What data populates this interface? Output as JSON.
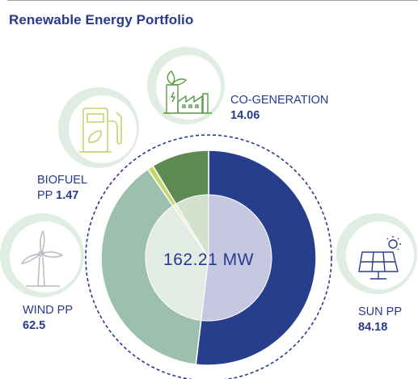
{
  "title": "Renewable Energy Portfolio",
  "center_label": "162.21 MW",
  "colors": {
    "title": "#283a8c",
    "sun": "#273e8c",
    "wind": "#9dbfad",
    "biofuel": "#c5d66a",
    "cogeneration": "#5d8a52",
    "icon_circle": "#dcebe0",
    "icon_stroke": "#5a9a45"
  },
  "chart_data": {
    "type": "pie",
    "title": "Renewable Energy Portfolio",
    "total_label": "162.21 MW",
    "unit": "MW",
    "slices": [
      {
        "key": "sun",
        "name": "SUN PP",
        "value": 84.18,
        "value_label": "84.18",
        "color": "#273e8c",
        "inner_color": "#c6c8e2",
        "icon": "solar-panel-icon"
      },
      {
        "key": "wind",
        "name": "WIND PP",
        "value": 62.5,
        "value_label": "62.5",
        "color": "#9dbfad",
        "inner_color": "#e2ece5",
        "icon": "wind-turbine-icon"
      },
      {
        "key": "biofuel",
        "name": "BIOFUEL",
        "name_line2": "PP",
        "value": 1.47,
        "value_label": "1.47",
        "color": "#c5d66a",
        "inner_color": "#eef3cf",
        "icon": "fuel-pump-icon"
      },
      {
        "key": "cogeneration",
        "name": "CO-GENERATION",
        "value": 14.06,
        "value_label": "14.06",
        "color": "#5d8a52",
        "inner_color": "#d3e2cf",
        "icon": "factory-icon"
      }
    ]
  }
}
